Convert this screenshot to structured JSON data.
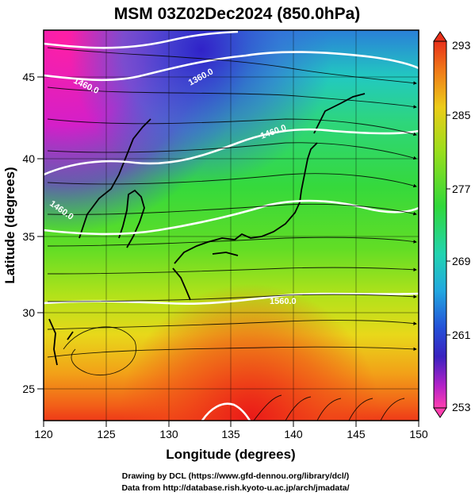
{
  "title": "MSM 03Z02Dec2024 (850.0hPa)",
  "x_axis": {
    "label": "Longitude (degrees)",
    "ticks": [
      "120",
      "125",
      "130",
      "135",
      "140",
      "145",
      "150"
    ]
  },
  "y_axis": {
    "label": "Latitude  (degrees)",
    "ticks": [
      "25",
      "30",
      "35",
      "40",
      "45"
    ]
  },
  "colorbar": {
    "ticks": [
      "293",
      "285",
      "277",
      "269",
      "261",
      "253"
    ],
    "min": 253,
    "max": 293
  },
  "contour_labels": [
    "1460.0",
    "1360.0",
    "1460.0",
    "1460.0",
    "1560.0"
  ],
  "credits": {
    "line1": "Drawing by DCL (https://www.gfd-dennou.org/library/dcl/)",
    "line2": "Data from http://database.rish.kyoto-u.ac.jp/arch/jmadata/"
  },
  "chart_data": {
    "type": "heatmap",
    "variable": "temperature (K) with streamlines and geopotential height contours",
    "xlim": [
      120,
      150
    ],
    "ylim": [
      22.5,
      48
    ],
    "color_range": [
      253,
      293
    ]
  }
}
